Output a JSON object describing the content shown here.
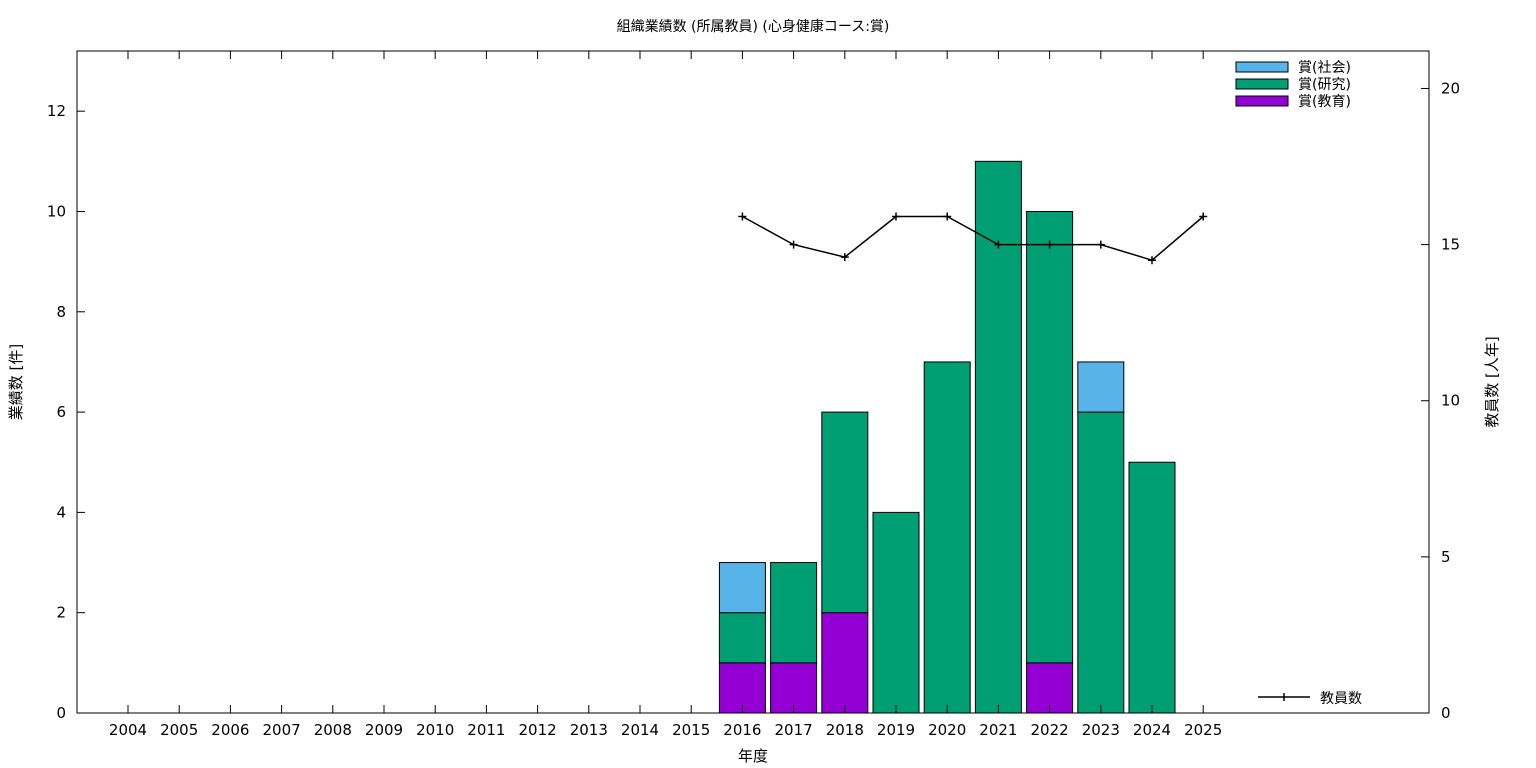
{
  "chart_data": {
    "type": "bar",
    "title": "組織業績数 (所属教員) (心身健康コース:賞)",
    "xlabel": "年度",
    "ylabel": "業績数 [件]",
    "y2label": "教員数 [人年]",
    "categories": [
      "2004",
      "2005",
      "2006",
      "2007",
      "2008",
      "2009",
      "2010",
      "2011",
      "2012",
      "2013",
      "2014",
      "2015",
      "2016",
      "2017",
      "2018",
      "2019",
      "2020",
      "2021",
      "2022",
      "2023",
      "2024",
      "2025"
    ],
    "ylim": [
      0,
      13.2
    ],
    "y2lim": [
      0,
      21.2
    ],
    "yticks": [
      "0",
      "2",
      "4",
      "6",
      "8",
      "10",
      "12"
    ],
    "y2ticks": [
      "0",
      "5",
      "10",
      "15",
      "20"
    ],
    "stacked": true,
    "grid": false,
    "legend_position": "top-right",
    "series": [
      {
        "name": "賞(教育)",
        "color": "#9400d3",
        "values": [
          0,
          0,
          0,
          0,
          0,
          0,
          0,
          0,
          0,
          0,
          0,
          0,
          1,
          1,
          2,
          0,
          0,
          0,
          1,
          0,
          0,
          0
        ]
      },
      {
        "name": "賞(研究)",
        "color": "#009e73",
        "values": [
          0,
          0,
          0,
          0,
          0,
          0,
          0,
          0,
          0,
          0,
          0,
          0,
          1,
          2,
          4,
          4,
          7,
          11,
          9,
          6,
          5,
          0
        ]
      },
      {
        "name": "賞(社会)",
        "color": "#56b4e9",
        "values": [
          0,
          0,
          0,
          0,
          0,
          0,
          0,
          0,
          0,
          0,
          0,
          0,
          1,
          0,
          0,
          0,
          0,
          0,
          0,
          1,
          0,
          0
        ]
      }
    ],
    "line_series": {
      "name": "教員数",
      "axis": "right",
      "color": "#000000",
      "x": [
        "2016",
        "2017",
        "2018",
        "2019",
        "2020",
        "2021",
        "2022",
        "2023",
        "2024",
        "2025"
      ],
      "values": [
        15.9,
        15.0,
        14.6,
        15.9,
        15.9,
        15.0,
        15.0,
        15.0,
        14.5,
        15.9
      ]
    }
  }
}
